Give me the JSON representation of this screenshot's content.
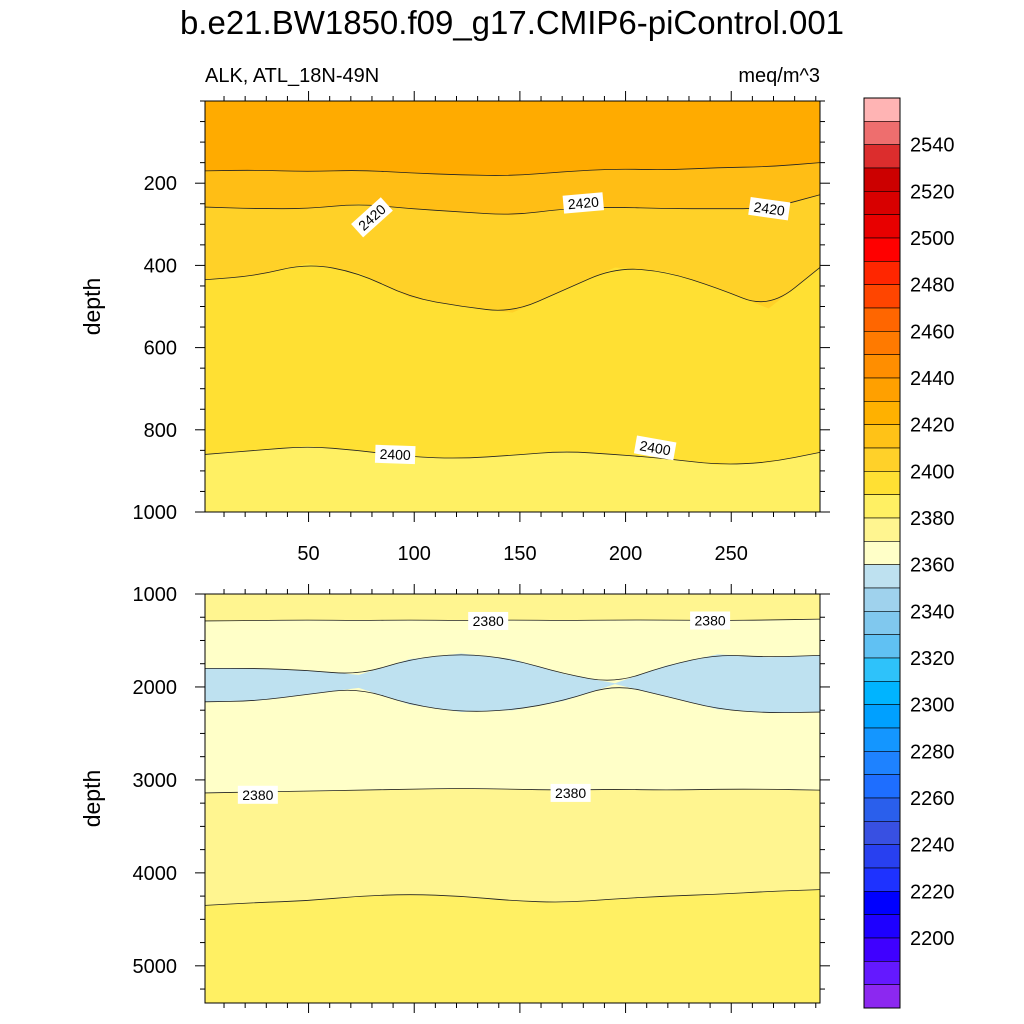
{
  "title": "b.e21.BW1850.f09_g17.CMIP6-piControl.001",
  "chart_data": {
    "type": "contour",
    "variable_label": "ALK, ATL_18N-49N",
    "units": "meq/m^3",
    "x": {
      "range": [
        1,
        292
      ],
      "tick_labels": [
        50,
        100,
        150,
        200,
        250
      ]
    },
    "panels": [
      {
        "name": "upper",
        "ylabel": "depth",
        "ylim": [
          0,
          1000
        ],
        "y_ticks": [
          200,
          400,
          600,
          800,
          1000
        ],
        "levels": [
          {
            "name": "band_a",
            "y": [
              0,
              0,
              0,
              0,
              0,
              0,
              0,
              0,
              0,
              0,
              0,
              0,
              0
            ],
            "fill": "#ffab00"
          },
          {
            "name": "band_b",
            "y": [
              170,
              168,
              172,
              168,
              175,
              180,
              182,
              172,
              165,
              168,
              162,
              160,
              150
            ],
            "fill": "#ffbe15"
          },
          {
            "name": "band_c",
            "y": [
              258,
              262,
              262,
              250,
              262,
              270,
              278,
              262,
              258,
              262,
              262,
              262,
              228
            ],
            "fill": "#ffd128"
          },
          {
            "name": "band_d",
            "y": [
              435,
              425,
              395,
              418,
              478,
              500,
              515,
              460,
              405,
              415,
              455,
              505,
              405
            ],
            "fill": "#ffe033"
          },
          {
            "name": "band_e",
            "y": [
              860,
              850,
              840,
              850,
              866,
              870,
              862,
              852,
              860,
              870,
              885,
              880,
              855
            ],
            "fill": "#fff063"
          }
        ],
        "contour_labels": [
          {
            "text": "2420",
            "x": 80,
            "y": 283,
            "rotate": -42
          },
          {
            "text": "2420",
            "x": 180,
            "y": 248,
            "rotate": -5
          },
          {
            "text": "2420",
            "x": 268,
            "y": 262,
            "rotate": 8
          },
          {
            "text": "2400",
            "x": 91,
            "y": 860,
            "rotate": 2
          },
          {
            "text": "2400",
            "x": 214,
            "y": 844,
            "rotate": 10
          }
        ]
      },
      {
        "name": "lower",
        "ylabel": "depth",
        "ylim": [
          1000,
          5400
        ],
        "y_ticks": [
          1000,
          2000,
          3000,
          4000,
          5000
        ],
        "levels": [
          {
            "name": "band_a",
            "y": [
              1000,
              1000,
              1000,
              1000,
              1000,
              1000,
              1000,
              1000,
              1000,
              1000,
              1000,
              1000,
              1000
            ],
            "fill": "#fff590"
          },
          {
            "name": "band_b",
            "y": [
              1290,
              1285,
              1280,
              1285,
              1280,
              1285,
              1280,
              1285,
              1280,
              1280,
              1285,
              1280,
              1270
            ],
            "fill": "#ffffc8"
          },
          {
            "name": "band_c_top",
            "y": [
              1800,
              1800,
              1820,
              1870,
              1700,
              1640,
              1700,
              1860,
              1960,
              1770,
              1650,
              1680,
              1660
            ],
            "fill": "#bee1f0"
          },
          {
            "name": "band_c_bottom",
            "y": [
              2160,
              2150,
              2080,
              2010,
              2190,
              2270,
              2250,
              2150,
              1970,
              2100,
              2240,
              2280,
              2270
            ],
            "fill": "#ffffc8"
          },
          {
            "name": "band_d",
            "y": [
              3140,
              3130,
              3120,
              3110,
              3100,
              3090,
              3100,
              3110,
              3100,
              3110,
              3100,
              3100,
              3110
            ],
            "fill": "#fff590"
          },
          {
            "name": "band_e",
            "y": [
              4350,
              4320,
              4300,
              4250,
              4230,
              4250,
              4300,
              4320,
              4280,
              4250,
              4230,
              4200,
              4180
            ],
            "fill": "#fff063"
          }
        ],
        "contour_labels": [
          {
            "text": "2380",
            "x": 135,
            "y": 1290,
            "rotate": 0
          },
          {
            "text": "2380",
            "x": 240,
            "y": 1285,
            "rotate": 0
          },
          {
            "text": "2380",
            "x": 26,
            "y": 3160,
            "rotate": 0
          },
          {
            "text": "2380",
            "x": 174,
            "y": 3140,
            "rotate": 0
          }
        ]
      }
    ],
    "colorbar": {
      "labels": [
        "2540",
        "2520",
        "2500",
        "2480",
        "2460",
        "2440",
        "2420",
        "2400",
        "2380",
        "2360",
        "2340",
        "2320",
        "2300",
        "2280",
        "2260",
        "2240",
        "2220",
        "2200"
      ],
      "colors": [
        "#ffb4b4",
        "#ee6e6e",
        "#dc2d2d",
        "#cc0000",
        "#d80000",
        "#e80000",
        "#ff0000",
        "#ff2600",
        "#ff4500",
        "#ff6600",
        "#ff7a00",
        "#ff8e00",
        "#ffa000",
        "#ffb100",
        "#ffc217",
        "#ffd129",
        "#ffe033",
        "#fff063",
        "#fff590",
        "#ffffc8",
        "#bee1f0",
        "#9fd2ed",
        "#80c8ee",
        "#60c1f3",
        "#2ec2fa",
        "#00b4ff",
        "#00a0ff",
        "#1496ff",
        "#1e82ff",
        "#1e6eff",
        "#2a5fec",
        "#3850e2",
        "#2840f0",
        "#1e32ff",
        "#0000ff",
        "#1e00ff",
        "#3f00ff",
        "#6419ff",
        "#8c28f0"
      ]
    }
  }
}
